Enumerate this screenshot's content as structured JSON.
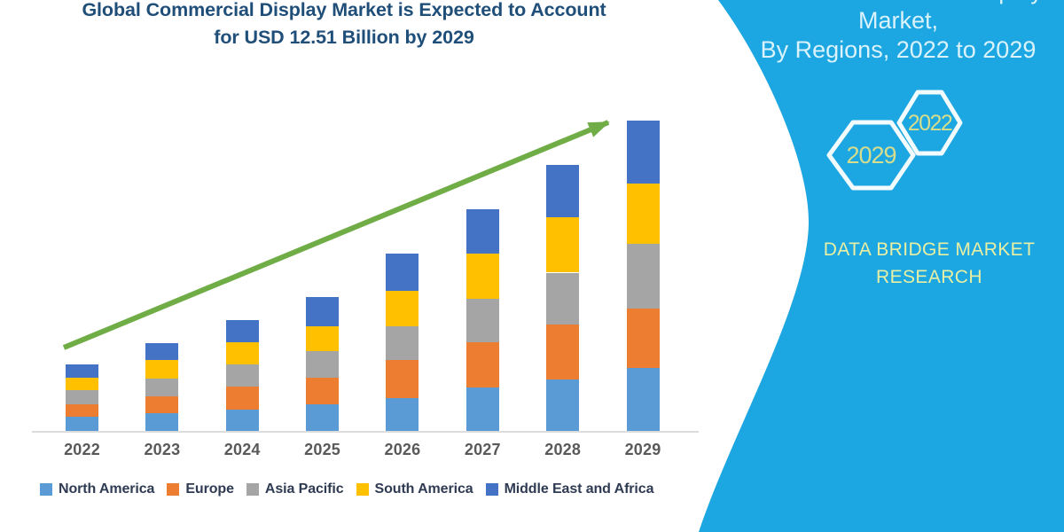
{
  "title": {
    "line1": "Global Commercial Display Market is Expected to Account",
    "line2": "for USD 12.51 Billion by 2029"
  },
  "chart_data": {
    "type": "bar",
    "subtype": "stacked",
    "unit": "USD Billion (estimated from bar heights)",
    "categories": [
      "2022",
      "2023",
      "2024",
      "2025",
      "2026",
      "2027",
      "2028",
      "2029"
    ],
    "series": [
      {
        "name": "North America",
        "color": "#5B9BD5",
        "values": [
          0.56,
          0.7,
          0.87,
          1.06,
          1.33,
          1.75,
          2.08,
          2.52
        ]
      },
      {
        "name": "Europe",
        "color": "#ED7D31",
        "values": [
          0.51,
          0.71,
          0.9,
          1.07,
          1.54,
          1.82,
          2.2,
          2.43
        ]
      },
      {
        "name": "Asia Pacific",
        "color": "#A5A5A5",
        "values": [
          0.58,
          0.69,
          0.9,
          1.07,
          1.33,
          1.75,
          2.1,
          2.58
        ]
      },
      {
        "name": "South America",
        "color": "#FFC000",
        "values": [
          0.51,
          0.75,
          0.9,
          1.01,
          1.46,
          1.84,
          2.25,
          2.46
        ]
      },
      {
        "name": "Middle East and Africa",
        "color": "#4472C4",
        "values": [
          0.52,
          0.69,
          0.88,
          1.17,
          1.49,
          1.77,
          2.08,
          2.52
        ]
      }
    ],
    "totals": [
      2.68,
      3.54,
      4.45,
      5.38,
      7.15,
      8.93,
      10.71,
      12.51
    ],
    "ylim": [
      0,
      12.51
    ],
    "grid": false,
    "y_axis_visible": false,
    "legend_position": "bottom",
    "annotations": [
      "upward green trend arrow from 2022 bar to 2029 bar"
    ]
  },
  "side_panel": {
    "title_line1": "Global Commercial Display Market,",
    "title_line2": "By Regions, 2022 to 2029",
    "hexagons": [
      {
        "label": "2029"
      },
      {
        "label": "2022"
      }
    ],
    "brand": "DATA BRIDGE MARKET RESEARCH",
    "background_color": "#1CA7E2",
    "title_color": "#D9F2FB",
    "hexagon_label_color": "#D6DE8D",
    "brand_color": "#E9EFA3"
  },
  "colors": {
    "trend_arrow": "#70AD47",
    "axis_line": "#DCDCDC",
    "chart_title": "#1F4E79",
    "legend_text": "#2F3B52",
    "x_label": "#595959"
  }
}
